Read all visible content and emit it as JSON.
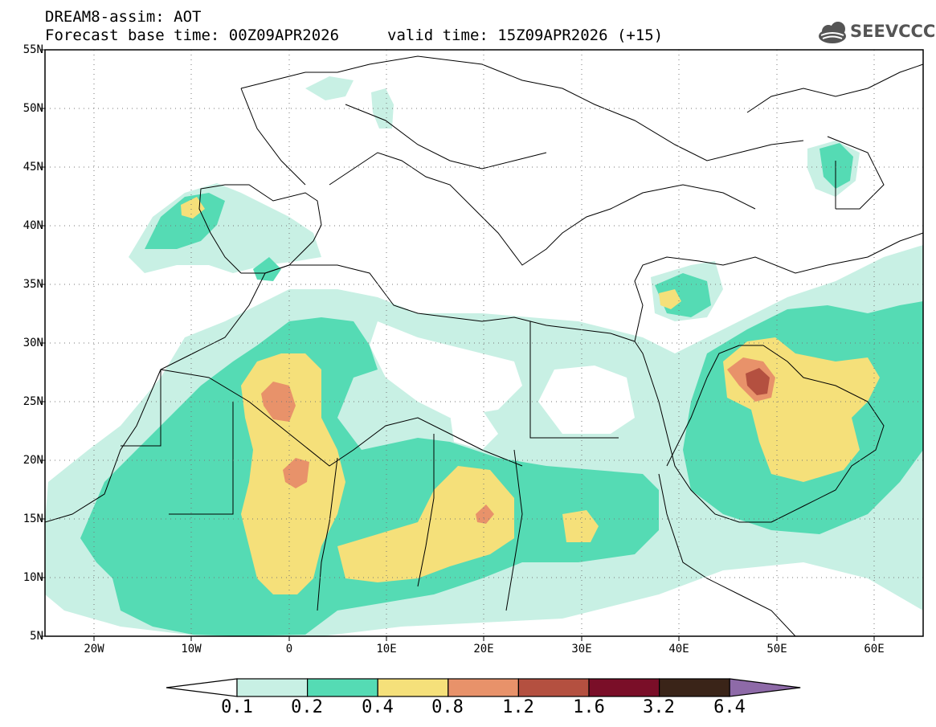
{
  "header": {
    "model_line": "DREAM8-assim: AOT",
    "base_time": "Forecast base time: 00Z09APR2026",
    "valid_time": "valid time: 15Z09APR2026 (+15)",
    "logo_text": "SEEVCCC"
  },
  "axes": {
    "lat_labels": [
      "55N",
      "50N",
      "45N",
      "40N",
      "35N",
      "30N",
      "25N",
      "20N",
      "15N",
      "10N",
      "5N"
    ],
    "lon_labels": [
      "20W",
      "10W",
      "0",
      "10E",
      "20E",
      "30E",
      "40E",
      "50E",
      "60E"
    ]
  },
  "colorbar": {
    "labels": [
      "0.1",
      "0.2",
      "0.4",
      "0.8",
      "1.2",
      "1.6",
      "3.2",
      "6.4"
    ],
    "colors": [
      "#ffffff",
      "#c8f0e4",
      "#55dbb4",
      "#f5e07a",
      "#e8926a",
      "#b45040",
      "#7a0e28",
      "#3a2418",
      "#8e6aa8"
    ]
  },
  "chart_data": {
    "type": "heatmap",
    "variable": "AOT",
    "domain": {
      "lon": [
        -25,
        65
      ],
      "lat": [
        5,
        55
      ]
    },
    "levels": [
      0.1,
      0.2,
      0.4,
      0.8,
      1.2,
      1.6,
      3.2,
      6.4
    ]
  }
}
